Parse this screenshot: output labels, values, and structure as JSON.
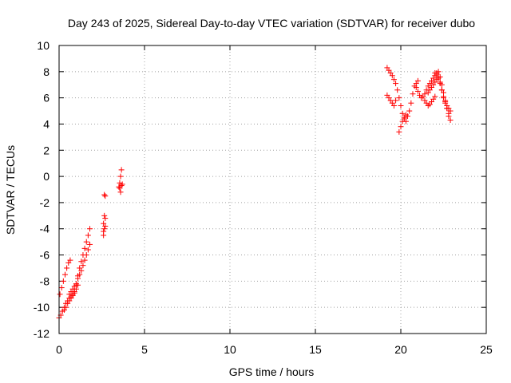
{
  "chart_data": {
    "type": "scatter",
    "title": "Day 243 of 2025, Sidereal Day-to-day VTEC variation (SDTVAR) for receiver dubo",
    "xlabel": "GPS time / hours",
    "ylabel": "SDTVAR / TECUs",
    "xlim": [
      0,
      25
    ],
    "ylim": [
      -12,
      10
    ],
    "xticks": [
      "0",
      "5",
      "10",
      "15",
      "20",
      "25"
    ],
    "yticks": [
      "-12",
      "-10",
      "-8",
      "-6",
      "-4",
      "-2",
      "0",
      "2",
      "4",
      "6",
      "8",
      "10"
    ],
    "grid": true,
    "marker": "plus",
    "color": "#ff0000",
    "series": [
      {
        "x": [
          0.0,
          0.1,
          0.2,
          0.3,
          0.4,
          0.5,
          0.6,
          0.7,
          0.8,
          0.9,
          1.0,
          1.1,
          1.2,
          1.3,
          1.4,
          1.5,
          1.6,
          1.7,
          1.8,
          0.05,
          0.15,
          0.25,
          0.35,
          0.45,
          0.55,
          0.65,
          0.6,
          0.7,
          0.8,
          0.9,
          1.0,
          1.1,
          1.2,
          1.3,
          1.4,
          1.5,
          1.6,
          1.7,
          1.8,
          0.3,
          0.4,
          0.5,
          0.6,
          0.7,
          0.8,
          0.9,
          1.0,
          1.1,
          2.6,
          2.65,
          2.7,
          2.6,
          2.65,
          2.7,
          2.65,
          2.6,
          2.7,
          3.5,
          3.55,
          3.6,
          3.65,
          3.7,
          3.6,
          3.55,
          3.65
        ],
        "y": [
          -10.8,
          -10.6,
          -10.3,
          -10.0,
          -9.7,
          -9.5,
          -9.3,
          -9.2,
          -9.0,
          -8.8,
          -8.3,
          -7.6,
          -7.0,
          -6.5,
          -6.0,
          -5.5,
          -5.0,
          -4.5,
          -4.0,
          -9.0,
          -8.5,
          -8.0,
          -7.5,
          -7.0,
          -6.6,
          -6.4,
          -9.0,
          -8.8,
          -8.6,
          -8.4,
          -8.2,
          -7.8,
          -7.5,
          -7.2,
          -6.8,
          -6.4,
          -6.0,
          -5.6,
          -5.2,
          -10.2,
          -10.0,
          -9.7,
          -9.5,
          -9.3,
          -9.1,
          -8.9,
          -8.6,
          -8.3,
          -4.5,
          -4.0,
          -3.2,
          -3.6,
          -3.0,
          -1.5,
          -1.4,
          -4.2,
          -3.8,
          -0.8,
          -0.5,
          0.0,
          0.5,
          -0.6,
          -1.2,
          -0.9,
          -0.7
        ]
      },
      {
        "x": [
          19.2,
          19.3,
          19.4,
          19.5,
          19.6,
          19.7,
          19.8,
          19.9,
          20.0,
          20.1,
          20.2,
          20.3,
          20.4,
          20.5,
          20.6,
          20.7,
          20.8,
          20.9,
          21.0,
          19.2,
          19.3,
          19.4,
          19.5,
          19.6,
          19.7,
          19.9,
          20.0,
          20.1,
          20.2,
          20.3,
          20.9,
          21.0,
          21.1,
          21.2,
          21.3,
          21.4,
          21.5,
          21.6,
          21.7,
          21.8,
          21.9,
          22.0,
          22.1,
          22.2,
          22.3,
          22.4,
          22.5,
          22.6,
          22.7,
          22.8,
          22.9,
          21.6,
          21.7,
          21.8,
          21.9,
          22.0,
          22.1,
          22.2,
          22.3,
          22.4,
          22.5,
          22.6,
          22.7,
          22.8,
          22.0,
          22.1,
          22.2,
          22.3,
          22.4,
          22.5,
          22.6,
          22.7,
          22.8,
          22.9,
          21.4,
          21.5,
          21.6,
          21.7,
          21.8,
          21.9,
          22.0
        ],
        "y": [
          8.3,
          8.1,
          7.9,
          7.7,
          7.4,
          7.1,
          6.6,
          6.0,
          5.4,
          4.8,
          4.4,
          4.2,
          4.6,
          5.0,
          5.6,
          6.3,
          6.9,
          7.1,
          7.3,
          6.2,
          6.0,
          5.8,
          5.6,
          5.4,
          5.8,
          3.4,
          3.8,
          4.2,
          4.5,
          4.7,
          6.8,
          6.5,
          6.2,
          6.0,
          6.1,
          6.3,
          6.6,
          6.9,
          7.1,
          7.3,
          7.5,
          7.7,
          7.9,
          8.0,
          7.6,
          7.0,
          6.4,
          5.8,
          5.2,
          4.6,
          4.3,
          6.4,
          6.6,
          6.8,
          7.0,
          7.2,
          7.4,
          7.6,
          7.2,
          6.6,
          6.0,
          5.6,
          5.2,
          4.8,
          7.9,
          7.8,
          7.5,
          7.1,
          6.6,
          6.1,
          5.7,
          5.4,
          5.2,
          5.0,
          5.8,
          5.6,
          5.4,
          5.5,
          5.7,
          5.9,
          6.1
        ]
      }
    ]
  }
}
